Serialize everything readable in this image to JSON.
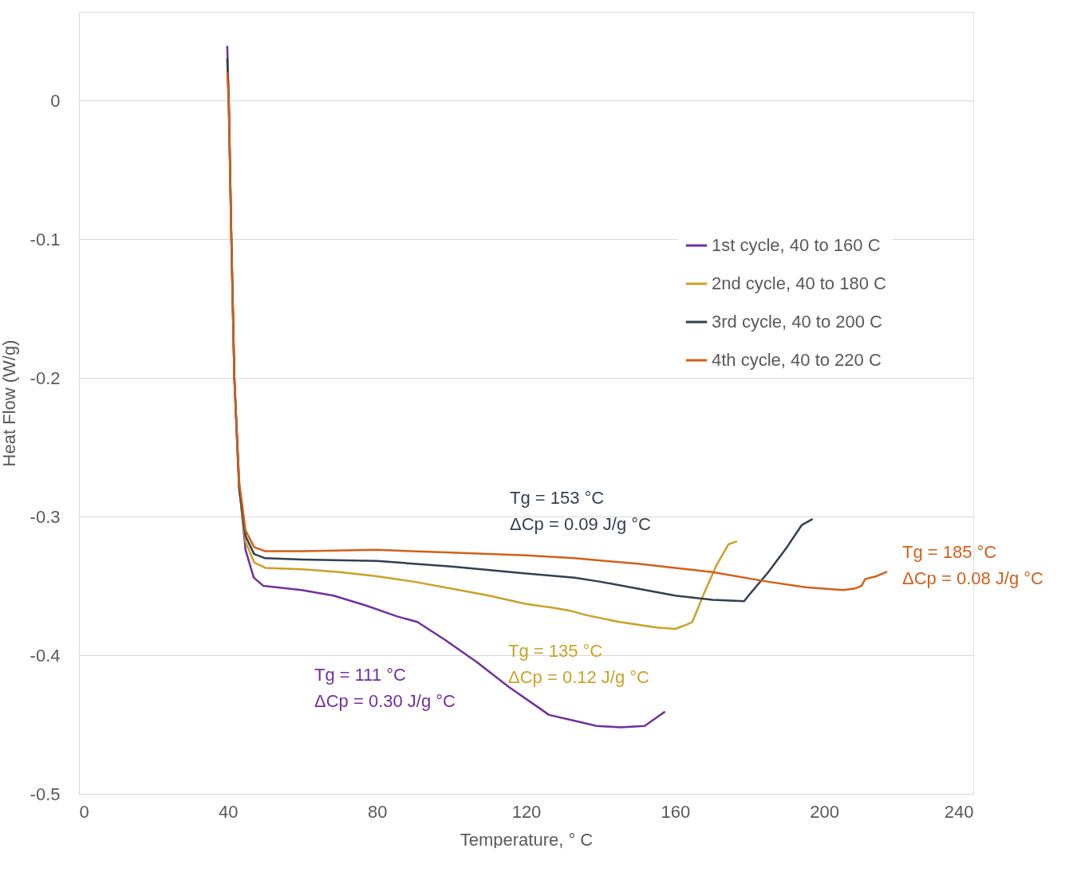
{
  "chart_data": {
    "type": "line",
    "xlabel": "Temperature, ° C",
    "ylabel": "Heat Flow (W/g)",
    "xlim": [
      0,
      240
    ],
    "xticks": [
      0,
      40,
      80,
      120,
      160,
      200,
      240
    ],
    "ylim": [
      -0.5,
      0.064
    ],
    "yticks": [
      -0.5,
      -0.4,
      -0.3,
      -0.2,
      -0.1,
      0
    ],
    "grid": "y",
    "legend": "top right",
    "line_style": "solid",
    "marker": "none",
    "series": [
      {
        "name": "1st cycle, 40 to 160 C",
        "color": "#7030a0",
        "x": [
          39.8,
          40.2,
          40.9,
          41.7,
          43.0,
          44.7,
          46.9,
          49.5,
          59.7,
          68.3,
          76.9,
          85.4,
          90.8,
          98.3,
          106.8,
          115.4,
          124.0,
          126.1,
          132.5,
          138.9,
          145.4,
          151.8,
          155.0,
          157.1
        ],
        "values": [
          0.039,
          0,
          -0.1,
          -0.2,
          -0.278,
          -0.324,
          -0.344,
          -0.35,
          -0.353,
          -0.357,
          -0.364,
          -0.372,
          -0.376,
          -0.389,
          -0.405,
          -0.423,
          -0.439,
          -0.443,
          -0.447,
          -0.451,
          -0.452,
          -0.451,
          -0.445,
          -0.441
        ]
      },
      {
        "name": "2nd cycle, 40 to 180 C",
        "color": "#c9a227",
        "x": [
          39.8,
          40.2,
          40.9,
          41.7,
          43.0,
          44.7,
          47,
          50,
          60,
          70,
          80,
          90,
          100,
          110,
          120,
          128,
          132,
          136,
          145,
          155,
          160,
          163,
          164.6,
          167.8,
          171.1,
          174.3,
          176.4
        ],
        "values": [
          0.029,
          0,
          -0.1,
          -0.2,
          -0.28,
          -0.318,
          -0.333,
          -0.337,
          -0.338,
          -0.34,
          -0.343,
          -0.347,
          -0.352,
          -0.357,
          -0.363,
          -0.366,
          -0.368,
          -0.371,
          -0.376,
          -0.38,
          -0.381,
          -0.378,
          -0.376,
          -0.355,
          -0.335,
          -0.32,
          -0.318
        ]
      },
      {
        "name": "3rd cycle, 40 to 200 C",
        "color": "#333f50",
        "x": [
          39.8,
          40.2,
          40.9,
          41.7,
          43.0,
          44.7,
          47,
          50,
          60,
          80,
          100,
          120,
          133,
          140,
          150,
          160,
          170,
          178.5,
          180,
          185,
          190,
          194,
          196.7
        ],
        "values": [
          0.03,
          0,
          -0.1,
          -0.2,
          -0.28,
          -0.314,
          -0.327,
          -0.33,
          -0.331,
          -0.332,
          -0.336,
          -0.341,
          -0.344,
          -0.347,
          -0.352,
          -0.357,
          -0.36,
          -0.361,
          -0.356,
          -0.34,
          -0.322,
          -0.306,
          -0.302
        ]
      },
      {
        "name": "4th cycle, 40 to 220 C",
        "color": "#d2601a",
        "x": [
          39.8,
          40.2,
          40.9,
          41.7,
          43.0,
          44.7,
          47,
          50,
          60,
          80,
          100,
          120,
          133,
          150,
          170,
          185,
          195,
          205,
          208,
          210,
          211,
          214,
          216.7
        ],
        "values": [
          0.02,
          0,
          -0.1,
          -0.2,
          -0.275,
          -0.31,
          -0.322,
          -0.325,
          -0.325,
          -0.324,
          -0.326,
          -0.328,
          -0.33,
          -0.334,
          -0.34,
          -0.347,
          -0.351,
          -0.353,
          -0.352,
          -0.35,
          -0.345,
          -0.343,
          -0.34
        ]
      }
    ],
    "annotations": [
      "Tg = 111 °C\nΔCp = 0.30 J/g °C",
      "Tg = 135 °C\nΔCp = 0.12 J/g °C",
      "Tg = 153 °C\nΔCp = 0.09 J/g °C",
      "Tg = 185 °C\nΔCp = 0.08 J/g °C"
    ]
  }
}
